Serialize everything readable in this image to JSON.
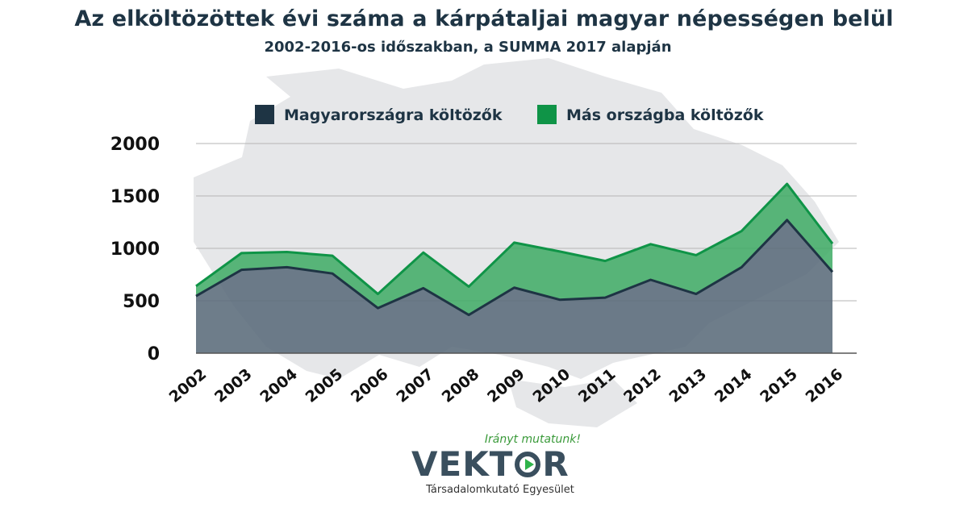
{
  "header": {
    "title": "Az elköltözöttek évi száma a kárpátaljai magyar népességen belül",
    "subtitle": "2002-2016-os időszakban, a SUMMA 2017 alapján"
  },
  "logo": {
    "slogan": "Irányt mutatunk!",
    "word_prefix": "VEKT",
    "word_suffix": "R",
    "organization": "Társadalomkutató Egyesület"
  },
  "colors": {
    "series_dark": "#1e3444",
    "series_green": "#0f9447",
    "dark_fill": "#5a6b7a",
    "green_fill": "#3daa64",
    "map_background": "#e6e7e9"
  },
  "chart_data": {
    "type": "area",
    "stacked": true,
    "categories": [
      "2002",
      "2003",
      "2004",
      "2005",
      "2006",
      "2007",
      "2008",
      "2009",
      "2010",
      "2011",
      "2012",
      "2013",
      "2014",
      "2015",
      "2016"
    ],
    "series": [
      {
        "name": "Magyarországra költözők",
        "values": [
          545,
          795,
          820,
          760,
          430,
          620,
          365,
          625,
          510,
          530,
          700,
          565,
          820,
          1270,
          775
        ]
      },
      {
        "name": "Más országba költözők",
        "values": [
          95,
          160,
          145,
          170,
          135,
          340,
          270,
          430,
          460,
          350,
          340,
          370,
          345,
          345,
          270
        ]
      }
    ],
    "yticks": [
      0,
      500,
      1000,
      1500,
      2000
    ],
    "ylim": [
      0,
      2000
    ],
    "grid": true,
    "legend_position": "top"
  }
}
